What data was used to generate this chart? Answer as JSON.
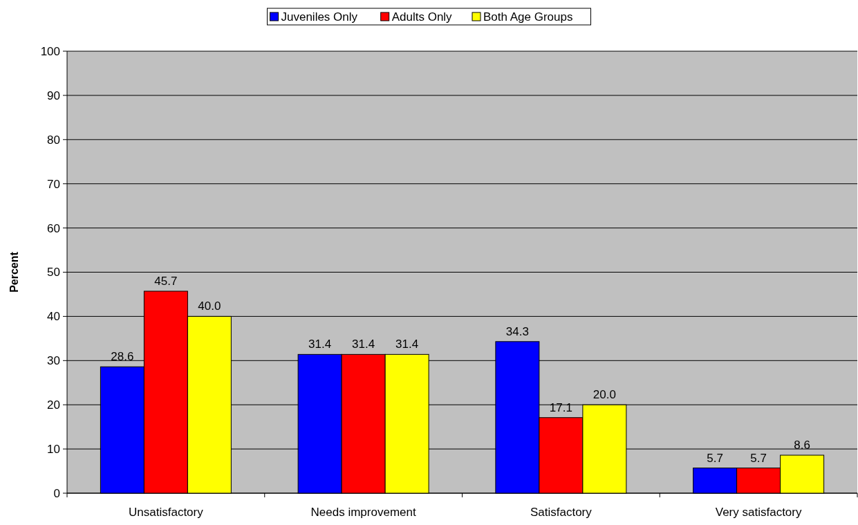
{
  "chart_data": {
    "type": "bar",
    "ylabel": "Percent",
    "categories": [
      "Unsatisfactory",
      "Needs improvement",
      "Satisfactory",
      "Very satisfactory"
    ],
    "series": [
      {
        "name": "Juveniles Only",
        "color": "#0000ff",
        "values": [
          28.6,
          31.4,
          34.3,
          5.7
        ],
        "value_labels": [
          "28.6",
          "31.4",
          "34.3",
          "5.7"
        ]
      },
      {
        "name": "Adults Only",
        "color": "#ff0000",
        "values": [
          45.7,
          31.4,
          17.1,
          5.7
        ],
        "value_labels": [
          "45.7",
          "31.4",
          "17.1",
          "5.7"
        ]
      },
      {
        "name": "Both Age Groups",
        "color": "#ffff00",
        "values": [
          40.0,
          31.4,
          20.0,
          8.6
        ],
        "value_labels": [
          "40.0",
          "31.4",
          "20.0",
          "8.6"
        ]
      }
    ],
    "ylim": [
      0,
      100
    ],
    "yticks": [
      0,
      10,
      20,
      30,
      40,
      50,
      60,
      70,
      80,
      90,
      100
    ],
    "grid": "y",
    "legend": "top"
  }
}
